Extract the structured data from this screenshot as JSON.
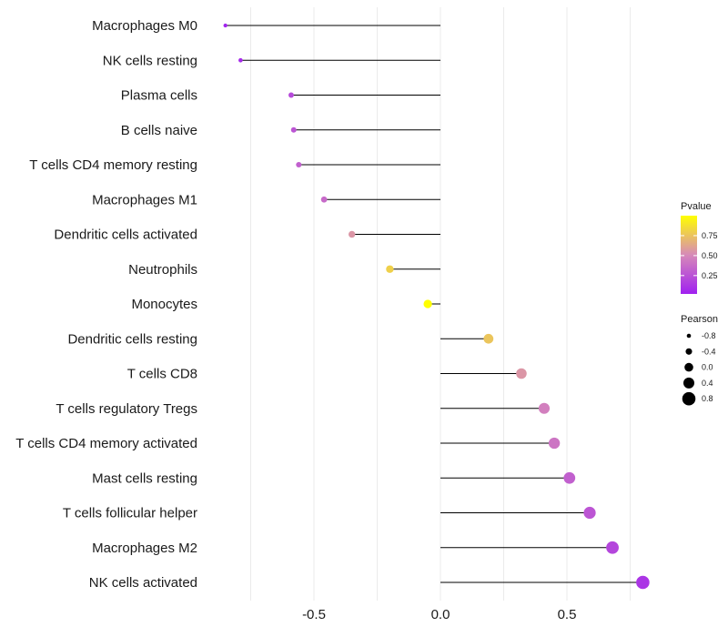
{
  "chart_data": {
    "type": "lollipop",
    "title": "",
    "xlabel": "",
    "ylabel": "",
    "xlim": [
      -0.9,
      0.82
    ],
    "x_ticks": [
      -0.5,
      0.0,
      0.5
    ],
    "x_tick_labels": [
      "-0.5",
      "0.0",
      "0.5"
    ],
    "grid": true,
    "colors": {
      "low": "#a020f0",
      "mid": "#d78ab8",
      "high": "#ffff00"
    },
    "categories": [
      "Macrophages M0",
      "NK cells resting",
      "Plasma cells",
      "B cells naive",
      "T cells CD4 memory resting",
      "Macrophages M1",
      "Dendritic cells activated",
      "Neutrophils",
      "Monocytes",
      "Dendritic cells resting",
      "T cells CD8",
      "T cells regulatory  Tregs ",
      "T cells CD4 memory activated",
      "Mast cells resting",
      "T cells follicular helper",
      "Macrophages M2",
      "NK cells activated"
    ],
    "values": [
      -0.85,
      -0.79,
      -0.59,
      -0.58,
      -0.56,
      -0.46,
      -0.35,
      -0.2,
      -0.05,
      0.19,
      0.32,
      0.41,
      0.45,
      0.51,
      0.59,
      0.68,
      0.8
    ],
    "pvalues": [
      0.02,
      0.05,
      0.2,
      0.25,
      0.3,
      0.35,
      0.55,
      0.8,
      1.0,
      0.75,
      0.55,
      0.45,
      0.4,
      0.3,
      0.25,
      0.18,
      0.1
    ],
    "legend_pvalue": {
      "title": "Pvalue",
      "ticks": [
        0.25,
        0.5,
        0.75
      ],
      "labels": [
        "0.25",
        "0.50",
        "0.75"
      ],
      "range": [
        0.02,
        1.0
      ],
      "position": "right"
    },
    "legend_pearson": {
      "title": "Pearson",
      "values": [
        -0.8,
        -0.4,
        0.0,
        0.4,
        0.8
      ],
      "labels": [
        "-0.8",
        "-0.4",
        "0.0",
        "0.4",
        "0.8"
      ],
      "position": "right"
    }
  }
}
